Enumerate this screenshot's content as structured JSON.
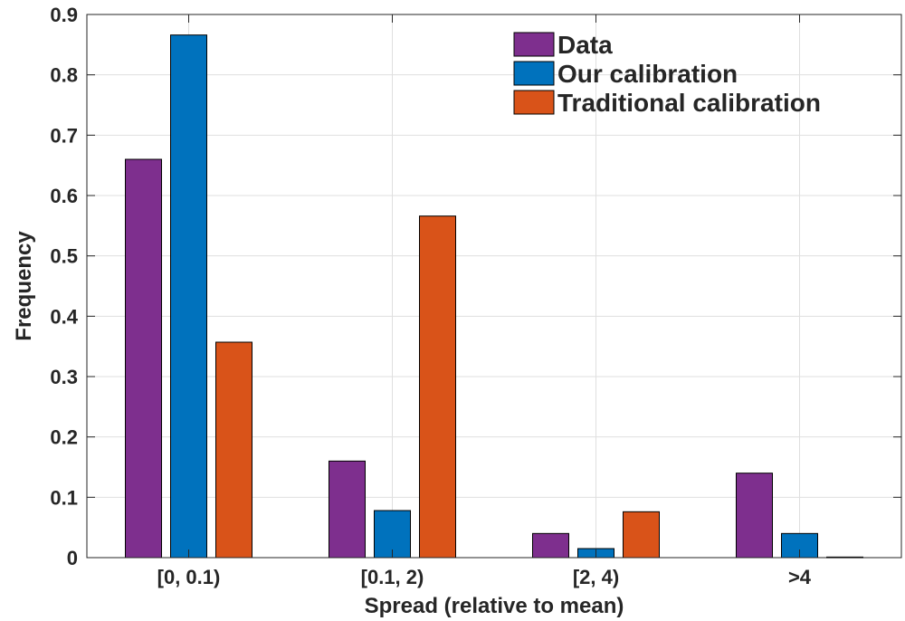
{
  "chart_data": {
    "type": "bar",
    "title": "",
    "xlabel": "Spread (relative to mean)",
    "ylabel": "Frequency",
    "categories": [
      "[0, 0.1)",
      "[0.1, 2)",
      "[2, 4)",
      ">4"
    ],
    "series": [
      {
        "name": "Data",
        "color": "#7E2F8E",
        "values": [
          0.66,
          0.16,
          0.04,
          0.14
        ]
      },
      {
        "name": "Our calibration",
        "color": "#0072BD",
        "values": [
          0.866,
          0.078,
          0.015,
          0.04
        ]
      },
      {
        "name": "Traditional calibration",
        "color": "#D95319",
        "values": [
          0.357,
          0.566,
          0.076,
          0.001
        ]
      }
    ],
    "ylim": [
      0,
      0.9
    ],
    "yticks": [
      0,
      0.1,
      0.2,
      0.3,
      0.4,
      0.5,
      0.6,
      0.7,
      0.8,
      0.9
    ],
    "ytick_labels": [
      "0",
      "0.1",
      "0.2",
      "0.3",
      "0.4",
      "0.5",
      "0.6",
      "0.7",
      "0.8",
      "0.9"
    ],
    "grid": true,
    "legend_position": "top-right"
  }
}
